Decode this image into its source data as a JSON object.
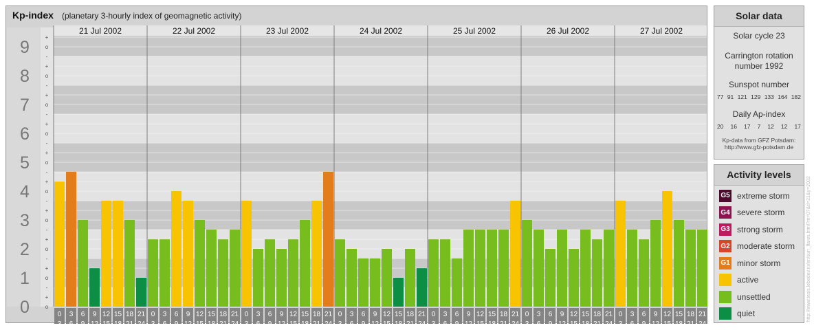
{
  "header": {
    "title": "Kp-index",
    "subtitle": "(planetary 3-hourly index of geomagnetic activity)"
  },
  "chart_data": {
    "type": "bar",
    "title": "Kp-index",
    "subtitle": "(planetary 3-hourly index of geomagnetic activity)",
    "ylim": [
      0,
      9.67
    ],
    "y_major_ticks": [
      "0",
      "1",
      "2",
      "3",
      "4",
      "5",
      "6",
      "7",
      "8",
      "9"
    ],
    "y_minor_ticks": [
      "+",
      "o",
      "-"
    ],
    "days": [
      "21 Jul 2002",
      "22 Jul 2002",
      "23 Jul 2002",
      "24 Jul 2002",
      "25 Jul 2002",
      "26 Jul 2002",
      "27 Jul 2002"
    ],
    "interval_start": [
      "0",
      "3",
      "6",
      "9",
      "12",
      "15",
      "18",
      "21"
    ],
    "interval_end": [
      "3",
      "6",
      "9",
      "12",
      "15",
      "18",
      "21",
      "24"
    ],
    "values": [
      [
        4.33,
        4.67,
        3.0,
        1.33,
        3.67,
        3.67,
        3.0,
        1.0
      ],
      [
        2.33,
        2.33,
        4.0,
        3.67,
        3.0,
        2.67,
        2.33,
        2.67
      ],
      [
        3.67,
        2.0,
        2.33,
        2.0,
        2.33,
        3.0,
        3.67,
        4.67
      ],
      [
        2.33,
        2.0,
        1.67,
        1.67,
        2.0,
        1.0,
        2.0,
        1.33
      ],
      [
        2.33,
        2.33,
        1.67,
        2.67,
        2.67,
        2.67,
        2.67,
        3.67
      ],
      [
        3.0,
        2.67,
        2.0,
        2.67,
        2.0,
        2.67,
        2.33,
        2.67
      ],
      [
        3.67,
        2.67,
        2.33,
        3.0,
        4.0,
        3.0,
        2.67,
        2.67
      ]
    ]
  },
  "colors": {
    "quiet": "#0c8f45",
    "unsettled": "#76bd1d",
    "active": "#f8c300",
    "minor_storm": "#e37c1b",
    "moderate_storm": "#d9442a",
    "strong_storm": "#c2185f",
    "severe_storm": "#8a1450",
    "extreme_storm": "#4e0a2c"
  },
  "solar_data": {
    "heading": "Solar data",
    "cycle": "Solar cycle 23",
    "carrington_line1": "Carrington rotation",
    "carrington_line2": "number 1992",
    "sunspot_label": "Sunspot number",
    "sunspot_numbers": [
      "77",
      "91",
      "121",
      "129",
      "133",
      "164",
      "182"
    ],
    "ap_label": "Daily Ap-index",
    "ap_values": [
      "20",
      "16",
      "17",
      "7",
      "12",
      "12",
      "17"
    ],
    "source_line1": "Kp-data from GFZ Potsdam:",
    "source_line2": "http://www.gfz-potsdam.de"
  },
  "activity_levels": {
    "heading": "Activity levels",
    "items": [
      {
        "badge": "G5",
        "label": "extreme storm",
        "color": "#4e0a2c"
      },
      {
        "badge": "G4",
        "label": "severe storm",
        "color": "#8a1450"
      },
      {
        "badge": "G3",
        "label": "strong storm",
        "color": "#c2185f"
      },
      {
        "badge": "G2",
        "label": "moderate storm",
        "color": "#d9442a"
      },
      {
        "badge": "G1",
        "label": "minor storm",
        "color": "#e37c1b"
      },
      {
        "badge": "",
        "label": "active",
        "color": "#f8c300"
      },
      {
        "badge": "",
        "label": "unsettled",
        "color": "#76bd1d"
      },
      {
        "badge": "",
        "label": "quiet",
        "color": "#0c8f45"
      }
    ]
  },
  "credit": "http://www.tesis.lebedev.ru/en/sun_flares.html?m=07&d=21&y=2002"
}
